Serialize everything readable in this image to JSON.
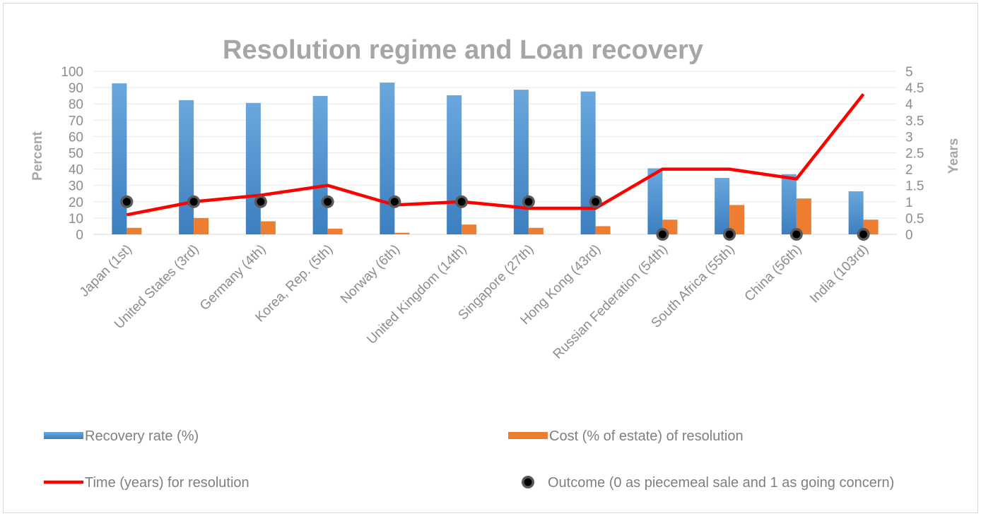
{
  "chart_data": {
    "type": "bar",
    "title": "Resolution regime and Loan recovery",
    "ylabel": "Percent",
    "y2label": "Years",
    "ylim": [
      0,
      100
    ],
    "y2lim": [
      0,
      5
    ],
    "yticks": [
      "0",
      "10",
      "20",
      "30",
      "40",
      "50",
      "60",
      "70",
      "80",
      "90",
      "100"
    ],
    "y2ticks": [
      "0",
      "0.5",
      "1",
      "1.5",
      "2",
      "2.5",
      "3",
      "3.5",
      "4",
      "4.5",
      "5"
    ],
    "grid": true,
    "legend_position": "bottom",
    "categories": [
      "Japan (1st)",
      "United States (3rd)",
      "Germany (4th)",
      "Korea, Rep. (5th)",
      "Norway (6th)",
      "United Kingdom (14th)",
      "Singapore (27th)",
      "Hong Kong (43rd)",
      "Russian Federation (54th)",
      "South Africa (55th)",
      "China (56th)",
      "India (103rd)"
    ],
    "series": [
      {
        "name": "Recovery rate (%)",
        "kind": "bar",
        "axis": "left",
        "color": "#5b9bd5",
        "values": [
          92.6,
          82.3,
          80.6,
          84.9,
          93.1,
          85.3,
          88.7,
          87.6,
          40.5,
          34.6,
          36.9,
          26.4
        ]
      },
      {
        "name": "Cost (% of estate) of resolution",
        "kind": "bar",
        "axis": "left",
        "color": "#ed7d31",
        "values": [
          4,
          10,
          8,
          3.5,
          1,
          6,
          4,
          5,
          9,
          18,
          22,
          9
        ]
      },
      {
        "name": "Time (years) for resolution",
        "kind": "line",
        "axis": "right",
        "color": "#ff0000",
        "values": [
          0.6,
          1.0,
          1.2,
          1.5,
          0.9,
          1.0,
          0.8,
          0.8,
          2.0,
          2.0,
          1.7,
          4.3
        ]
      },
      {
        "name": "Outcome (0 as piecemeal sale and 1 as going concern)",
        "kind": "scatter",
        "axis": "right",
        "color": "#000000",
        "values": [
          1,
          1,
          1,
          1,
          1,
          1,
          1,
          1,
          0,
          0,
          0,
          0
        ]
      }
    ]
  }
}
